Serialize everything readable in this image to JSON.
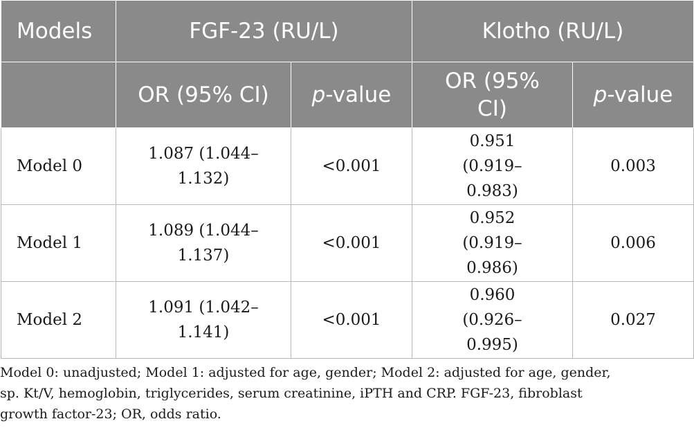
{
  "table": {
    "header": {
      "models": "Models",
      "fgf23": "FGF-23 (RU/L)",
      "klotho": "Klotho (RU/L)",
      "or_label": "OR (95% CI)",
      "or_label_line1": "OR (95%",
      "or_label_line2": "CI)",
      "p_italic": "p",
      "p_suffix": "-value"
    },
    "rows": [
      {
        "model": "Model 0",
        "fgf_or_line1": "1.087 (1.044–",
        "fgf_or_line2": "1.132)",
        "fgf_p": "<0.001",
        "klotho_or_line1": "0.951 (0.919–",
        "klotho_or_line2": "0.983)",
        "klotho_p": "0.003"
      },
      {
        "model": "Model 1",
        "fgf_or_line1": "1.089 (1.044–",
        "fgf_or_line2": "1.137)",
        "fgf_p": "<0.001",
        "klotho_or_line1": "0.952 (0.919–",
        "klotho_or_line2": "0.986)",
        "klotho_p": "0.006"
      },
      {
        "model": "Model 2",
        "fgf_or_line1": "1.091 (1.042–",
        "fgf_or_line2": "1.141)",
        "fgf_p": "<0.001",
        "klotho_or_line1": "0.960 (0.926–",
        "klotho_or_line2": "0.995)",
        "klotho_p": "0.027"
      }
    ]
  },
  "footnote": {
    "line1": "Model 0: unadjusted; Model 1: adjusted for age, gender; Model 2: adjusted for age, gender,",
    "line2": "sp. Kt/V, hemoglobin, triglycerides, serum creatinine, iPTH and CRP. FGF-23, fibroblast",
    "line3": "growth factor-23; OR, odds ratio."
  }
}
